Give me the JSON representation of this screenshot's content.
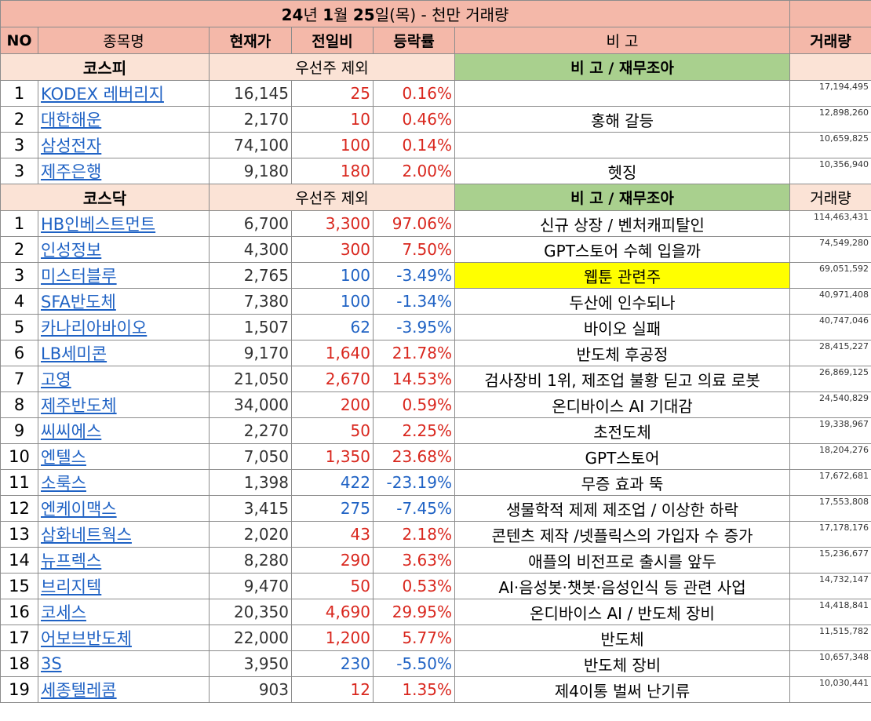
{
  "title": {
    "prefix": "24",
    "part1": "년 ",
    "bold1": "1",
    "part2": "월 ",
    "bold2": "25",
    "part3": "일(목) - 천만 거래량"
  },
  "headers": {
    "no": "NO",
    "name": "종목명",
    "price": "현재가",
    "change": "전일비",
    "rate": "등락률",
    "note": "비 고",
    "volume": "거래량"
  },
  "kospi": {
    "section": "코스피",
    "excl": "우선주 제외",
    "note_header": "비 고 / 재무조아",
    "volume_header": "",
    "rows": [
      {
        "no": "1",
        "name": "KODEX 레버리지",
        "price": "16,145",
        "change": "25",
        "rate": "0.16%",
        "dir": "up",
        "note": "",
        "volume": "17,194,495"
      },
      {
        "no": "2",
        "name": "대한해운",
        "price": "2,170",
        "change": "10",
        "rate": "0.46%",
        "dir": "up",
        "note": "홍해 갈등",
        "volume": "12,898,260"
      },
      {
        "no": "3",
        "name": "삼성전자",
        "price": "74,100",
        "change": "100",
        "rate": "0.14%",
        "dir": "up",
        "note": "",
        "volume": "10,659,825"
      },
      {
        "no": "3",
        "name": "제주은행",
        "price": "9,180",
        "change": "180",
        "rate": "2.00%",
        "dir": "up",
        "note": "헷징",
        "volume": "10,356,940"
      }
    ]
  },
  "kosdaq": {
    "section": "코스닥",
    "excl": "우선주 제외",
    "note_header": "비 고 / 재무조아",
    "volume_header": "거래량",
    "rows": [
      {
        "no": "1",
        "name": "HB인베스트먼트",
        "price": "6,700",
        "change": "3,300",
        "rate": "97.06%",
        "dir": "up",
        "note": "신규 상장 / 벤처캐피탈인",
        "volume": "114,463,431"
      },
      {
        "no": "2",
        "name": "인성정보",
        "price": "4,300",
        "change": "300",
        "rate": "7.50%",
        "dir": "up",
        "note": "GPT스토어 수혜 입을까",
        "volume": "74,549,280"
      },
      {
        "no": "3",
        "name": "미스터블루",
        "price": "2,765",
        "change": "100",
        "rate": "-3.49%",
        "dir": "down",
        "note": "웹툰 관련주",
        "volume": "69,051,592",
        "highlight": true
      },
      {
        "no": "4",
        "name": "SFA반도체",
        "price": "7,380",
        "change": "100",
        "rate": "-1.34%",
        "dir": "down",
        "note": "두산에 인수되나",
        "volume": "40,971,408"
      },
      {
        "no": "5",
        "name": "카나리아바이오",
        "price": "1,507",
        "change": "62",
        "rate": "-3.95%",
        "dir": "down",
        "note": "바이오 실패",
        "volume": "40,747,046"
      },
      {
        "no": "6",
        "name": "LB세미콘",
        "price": "9,170",
        "change": "1,640",
        "rate": "21.78%",
        "dir": "up",
        "note": "반도체 후공정",
        "volume": "28,415,227"
      },
      {
        "no": "7",
        "name": "고영",
        "price": "21,050",
        "change": "2,670",
        "rate": "14.53%",
        "dir": "up",
        "note": "검사장비 1위, 제조업 불황 딛고 의료 로봇",
        "volume": "26,869,125"
      },
      {
        "no": "8",
        "name": "제주반도체",
        "price": "34,000",
        "change": "200",
        "rate": "0.59%",
        "dir": "up",
        "note": "온디바이스 AI 기대감",
        "volume": "24,540,829"
      },
      {
        "no": "9",
        "name": "씨씨에스",
        "price": "2,270",
        "change": "50",
        "rate": "2.25%",
        "dir": "up",
        "note": "초전도체",
        "volume": "19,338,967"
      },
      {
        "no": "10",
        "name": "엔텔스",
        "price": "7,050",
        "change": "1,350",
        "rate": "23.68%",
        "dir": "up",
        "note": "GPT스토어",
        "volume": "18,204,276"
      },
      {
        "no": "11",
        "name": "소룩스",
        "price": "1,398",
        "change": "422",
        "rate": "-23.19%",
        "dir": "down",
        "note": "무증 효과 뚝",
        "volume": "17,672,681"
      },
      {
        "no": "12",
        "name": "엔케이맥스",
        "price": "3,415",
        "change": "275",
        "rate": "-7.45%",
        "dir": "down",
        "note": "생물학적 제제 제조업 /  이상한 하락",
        "volume": "17,553,808"
      },
      {
        "no": "13",
        "name": "삼화네트웍스",
        "price": "2,020",
        "change": "43",
        "rate": "2.18%",
        "dir": "up",
        "note": "콘텐츠 제작 /넷플릭스의 가입자 수 증가",
        "volume": "17,178,176"
      },
      {
        "no": "14",
        "name": "뉴프렉스",
        "price": "8,280",
        "change": "290",
        "rate": "3.63%",
        "dir": "up",
        "note": "애플의 비전프로 출시를 앞두",
        "volume": "15,236,677"
      },
      {
        "no": "15",
        "name": "브리지텍",
        "price": "9,470",
        "change": "50",
        "rate": "0.53%",
        "dir": "up",
        "note": "AI·음성봇·챗봇·음성인식 등 관련 사업",
        "volume": "14,732,147"
      },
      {
        "no": "16",
        "name": "코세스",
        "price": "20,350",
        "change": "4,690",
        "rate": "29.95%",
        "dir": "up",
        "note": "온디바이스 AI / 반도체 장비",
        "volume": "14,418,841"
      },
      {
        "no": "17",
        "name": "어보브반도체",
        "price": "22,000",
        "change": "1,200",
        "rate": "5.77%",
        "dir": "up",
        "note": "반도체",
        "volume": "11,515,782"
      },
      {
        "no": "18",
        "name": "3S",
        "price": "3,950",
        "change": "230",
        "rate": "-5.50%",
        "dir": "down",
        "note": "반도체 장비",
        "volume": "10,657,348"
      },
      {
        "no": "19",
        "name": "세종텔레콤",
        "price": "903",
        "change": "12",
        "rate": "1.35%",
        "dir": "up",
        "note": "제4이통 벌써 난기류",
        "volume": "10,030,441"
      }
    ]
  }
}
